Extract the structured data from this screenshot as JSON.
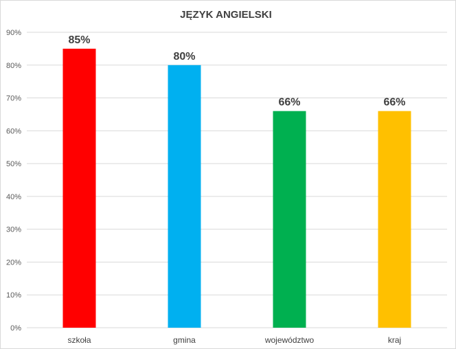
{
  "chart_data": {
    "type": "bar",
    "title": "JĘZYK ANGIELSKI",
    "xlabel": "",
    "ylabel": "",
    "ylim": [
      0,
      90
    ],
    "y_tick_step": 10,
    "y_tick_suffix": "%",
    "grid": true,
    "legend": "none",
    "categories": [
      "szkoła",
      "gmina",
      "województwo",
      "kraj"
    ],
    "values": [
      85,
      80,
      66,
      66
    ],
    "data_labels": [
      "85%",
      "80%",
      "66%",
      "66%"
    ],
    "colors": [
      "#ff0000",
      "#00b0f0",
      "#00b050",
      "#ffc000"
    ]
  }
}
